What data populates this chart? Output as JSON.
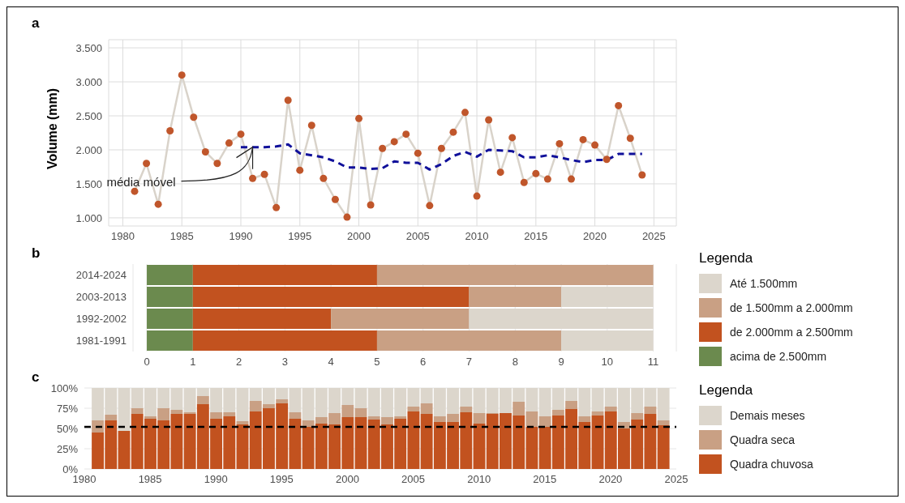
{
  "chart_data": [
    {
      "type": "line",
      "title": "a",
      "ylabel": "Volume (mm)",
      "xlim": [
        1978.8,
        2026.9
      ],
      "xticks": [
        1980,
        1985,
        1990,
        1995,
        2000,
        2005,
        2010,
        2015,
        2020,
        2025
      ],
      "ylim": [
        880,
        3620
      ],
      "yticks": [
        {
          "value": 1000,
          "label": "1.000"
        },
        {
          "value": 1500,
          "label": "1.500"
        },
        {
          "value": 2000,
          "label": "2.000"
        },
        {
          "value": 2500,
          "label": "2.500"
        },
        {
          "value": 3000,
          "label": "3.000"
        },
        {
          "value": 3500,
          "label": "3.500"
        }
      ],
      "grid": true,
      "annotations": [
        {
          "text": "média móvel",
          "x": 1991,
          "y": 2040
        }
      ],
      "x": [
        1981,
        1982,
        1983,
        1984,
        1985,
        1986,
        1987,
        1988,
        1989,
        1990,
        1991,
        1992,
        1993,
        1994,
        1995,
        1996,
        1997,
        1998,
        1999,
        2000,
        2001,
        2002,
        2003,
        2004,
        2005,
        2006,
        2007,
        2008,
        2009,
        2010,
        2011,
        2012,
        2013,
        2014,
        2015,
        2016,
        2017,
        2018,
        2019,
        2020,
        2021,
        2022,
        2023,
        2024
      ],
      "series": [
        {
          "type": "line",
          "color": "#d9d3ca",
          "values": [
            1390,
            1800,
            1200,
            2280,
            3100,
            2480,
            1970,
            1800,
            2100,
            2230,
            1580,
            1640,
            1150,
            2730,
            1700,
            2360,
            1580,
            1270,
            1010,
            2460,
            1190,
            2020,
            2120,
            2230,
            1950,
            1180,
            2020,
            2260,
            2550,
            1320,
            2440,
            1670,
            2180,
            1520,
            1650,
            1570,
            2090,
            1570,
            2150,
            2070,
            1860,
            2650,
            2170,
            1630
          ]
        },
        {
          "type": "scatter",
          "marker": "circle",
          "color": "#c0562b",
          "values": [
            1390,
            1800,
            1200,
            2280,
            3100,
            2480,
            1970,
            1800,
            2100,
            2230,
            1580,
            1640,
            1150,
            2730,
            1700,
            2360,
            1580,
            1270,
            1010,
            2460,
            1190,
            2020,
            2120,
            2230,
            1950,
            1180,
            2020,
            2260,
            2550,
            1320,
            2440,
            1670,
            2180,
            1520,
            1650,
            1570,
            2090,
            1570,
            2150,
            2070,
            1860,
            2650,
            2170,
            1630
          ]
        },
        {
          "type": "line",
          "line_style": "dashed",
          "color": "#10109a",
          "x": [
            1990,
            1991,
            1992,
            1993,
            1994,
            1995,
            1996,
            1997,
            1998,
            1999,
            2000,
            2001,
            2002,
            2003,
            2004,
            2005,
            2006,
            2007,
            2008,
            2009,
            2010,
            2011,
            2012,
            2013,
            2014,
            2015,
            2016,
            2017,
            2018,
            2019,
            2020,
            2021,
            2022,
            2023,
            2024
          ],
          "values": [
            2040,
            2040,
            2040,
            2050,
            2080,
            1950,
            1920,
            1890,
            1830,
            1740,
            1740,
            1720,
            1730,
            1830,
            1810,
            1810,
            1710,
            1790,
            1910,
            1970,
            1900,
            2000,
            1990,
            1980,
            1890,
            1890,
            1920,
            1890,
            1850,
            1820,
            1850,
            1850,
            1940,
            1940,
            1940
          ]
        }
      ]
    },
    {
      "type": "bar",
      "orientation": "horizontal",
      "stacked": true,
      "title": "b",
      "legend_title": "Legenda",
      "legend": "right",
      "grid": "x",
      "categories": [
        "2014-2024",
        "2003-2013",
        "1992-2002",
        "1981-1991"
      ],
      "xlim": [
        -0.3,
        11.5
      ],
      "xticks": [
        0,
        1,
        2,
        3,
        4,
        5,
        6,
        7,
        8,
        9,
        10,
        11
      ],
      "series": [
        {
          "name": "acima de 2.500mm",
          "color": "#6b8a4e",
          "values": [
            1,
            1,
            1,
            1
          ]
        },
        {
          "name": "de 2.000mm a 2.500mm",
          "color": "#c2521f",
          "values": [
            4,
            6,
            3,
            4
          ]
        },
        {
          "name": "de 1.500mm a 2.000mm",
          "color": "#c9a084",
          "values": [
            6,
            2,
            3,
            4
          ]
        },
        {
          "name": "Até 1.500mm",
          "color": "#dcd6cc",
          "values": [
            0,
            2,
            4,
            2
          ]
        }
      ]
    },
    {
      "type": "bar",
      "stacked": true,
      "title": "c",
      "legend_title": "Legenda",
      "legend": "right",
      "grid": "y",
      "x": [
        1981,
        1982,
        1983,
        1984,
        1985,
        1986,
        1987,
        1988,
        1989,
        1990,
        1991,
        1992,
        1993,
        1994,
        1995,
        1996,
        1997,
        1998,
        1999,
        2000,
        2001,
        2002,
        2003,
        2004,
        2005,
        2006,
        2007,
        2008,
        2009,
        2010,
        2011,
        2012,
        2013,
        2014,
        2015,
        2016,
        2017,
        2018,
        2019,
        2020,
        2021,
        2022,
        2023,
        2024
      ],
      "xlim": [
        1980,
        2025
      ],
      "xticks": [
        1980,
        1985,
        1990,
        1995,
        2000,
        2005,
        2010,
        2015,
        2020,
        2025
      ],
      "ylim": [
        0,
        100
      ],
      "yticks": [
        {
          "value": 0,
          "label": "0%"
        },
        {
          "value": 25,
          "label": "25%"
        },
        {
          "value": 50,
          "label": "50%"
        },
        {
          "value": 75,
          "label": "75%"
        },
        {
          "value": 100,
          "label": "100%"
        }
      ],
      "ref_lines": [
        {
          "axis": "y",
          "value": 52,
          "color": "#000000",
          "line_style": "dashed"
        }
      ],
      "series": [
        {
          "name": "Quadra chuvosa",
          "color": "#c2521f",
          "values": [
            45,
            60,
            47,
            68,
            62,
            60,
            68,
            68,
            80,
            62,
            65,
            55,
            71,
            75,
            81,
            62,
            52,
            56,
            55,
            64,
            64,
            61,
            55,
            62,
            71,
            68,
            58,
            58,
            70,
            56,
            68,
            69,
            66,
            52,
            52,
            66,
            74,
            58,
            66,
            71,
            50,
            61,
            68,
            54
          ]
        },
        {
          "name": "Quadra seca",
          "color": "#c9a084",
          "values": [
            15,
            7,
            0,
            7,
            3,
            15,
            5,
            2,
            10,
            8,
            5,
            4,
            13,
            5,
            5,
            8,
            8,
            8,
            14,
            15,
            11,
            4,
            9,
            3,
            6,
            13,
            7,
            10,
            7,
            13,
            1,
            0,
            17,
            19,
            13,
            7,
            10,
            7,
            5,
            6,
            8,
            8,
            9,
            6
          ]
        },
        {
          "name": "Demais meses",
          "color": "#dcd6cc",
          "values": [
            40,
            33,
            53,
            25,
            35,
            25,
            27,
            30,
            10,
            30,
            30,
            41,
            16,
            20,
            14,
            30,
            40,
            36,
            31,
            21,
            25,
            35,
            36,
            35,
            23,
            19,
            35,
            32,
            23,
            31,
            31,
            31,
            17,
            29,
            35,
            27,
            16,
            35,
            29,
            23,
            42,
            31,
            23,
            40
          ]
        }
      ]
    }
  ]
}
